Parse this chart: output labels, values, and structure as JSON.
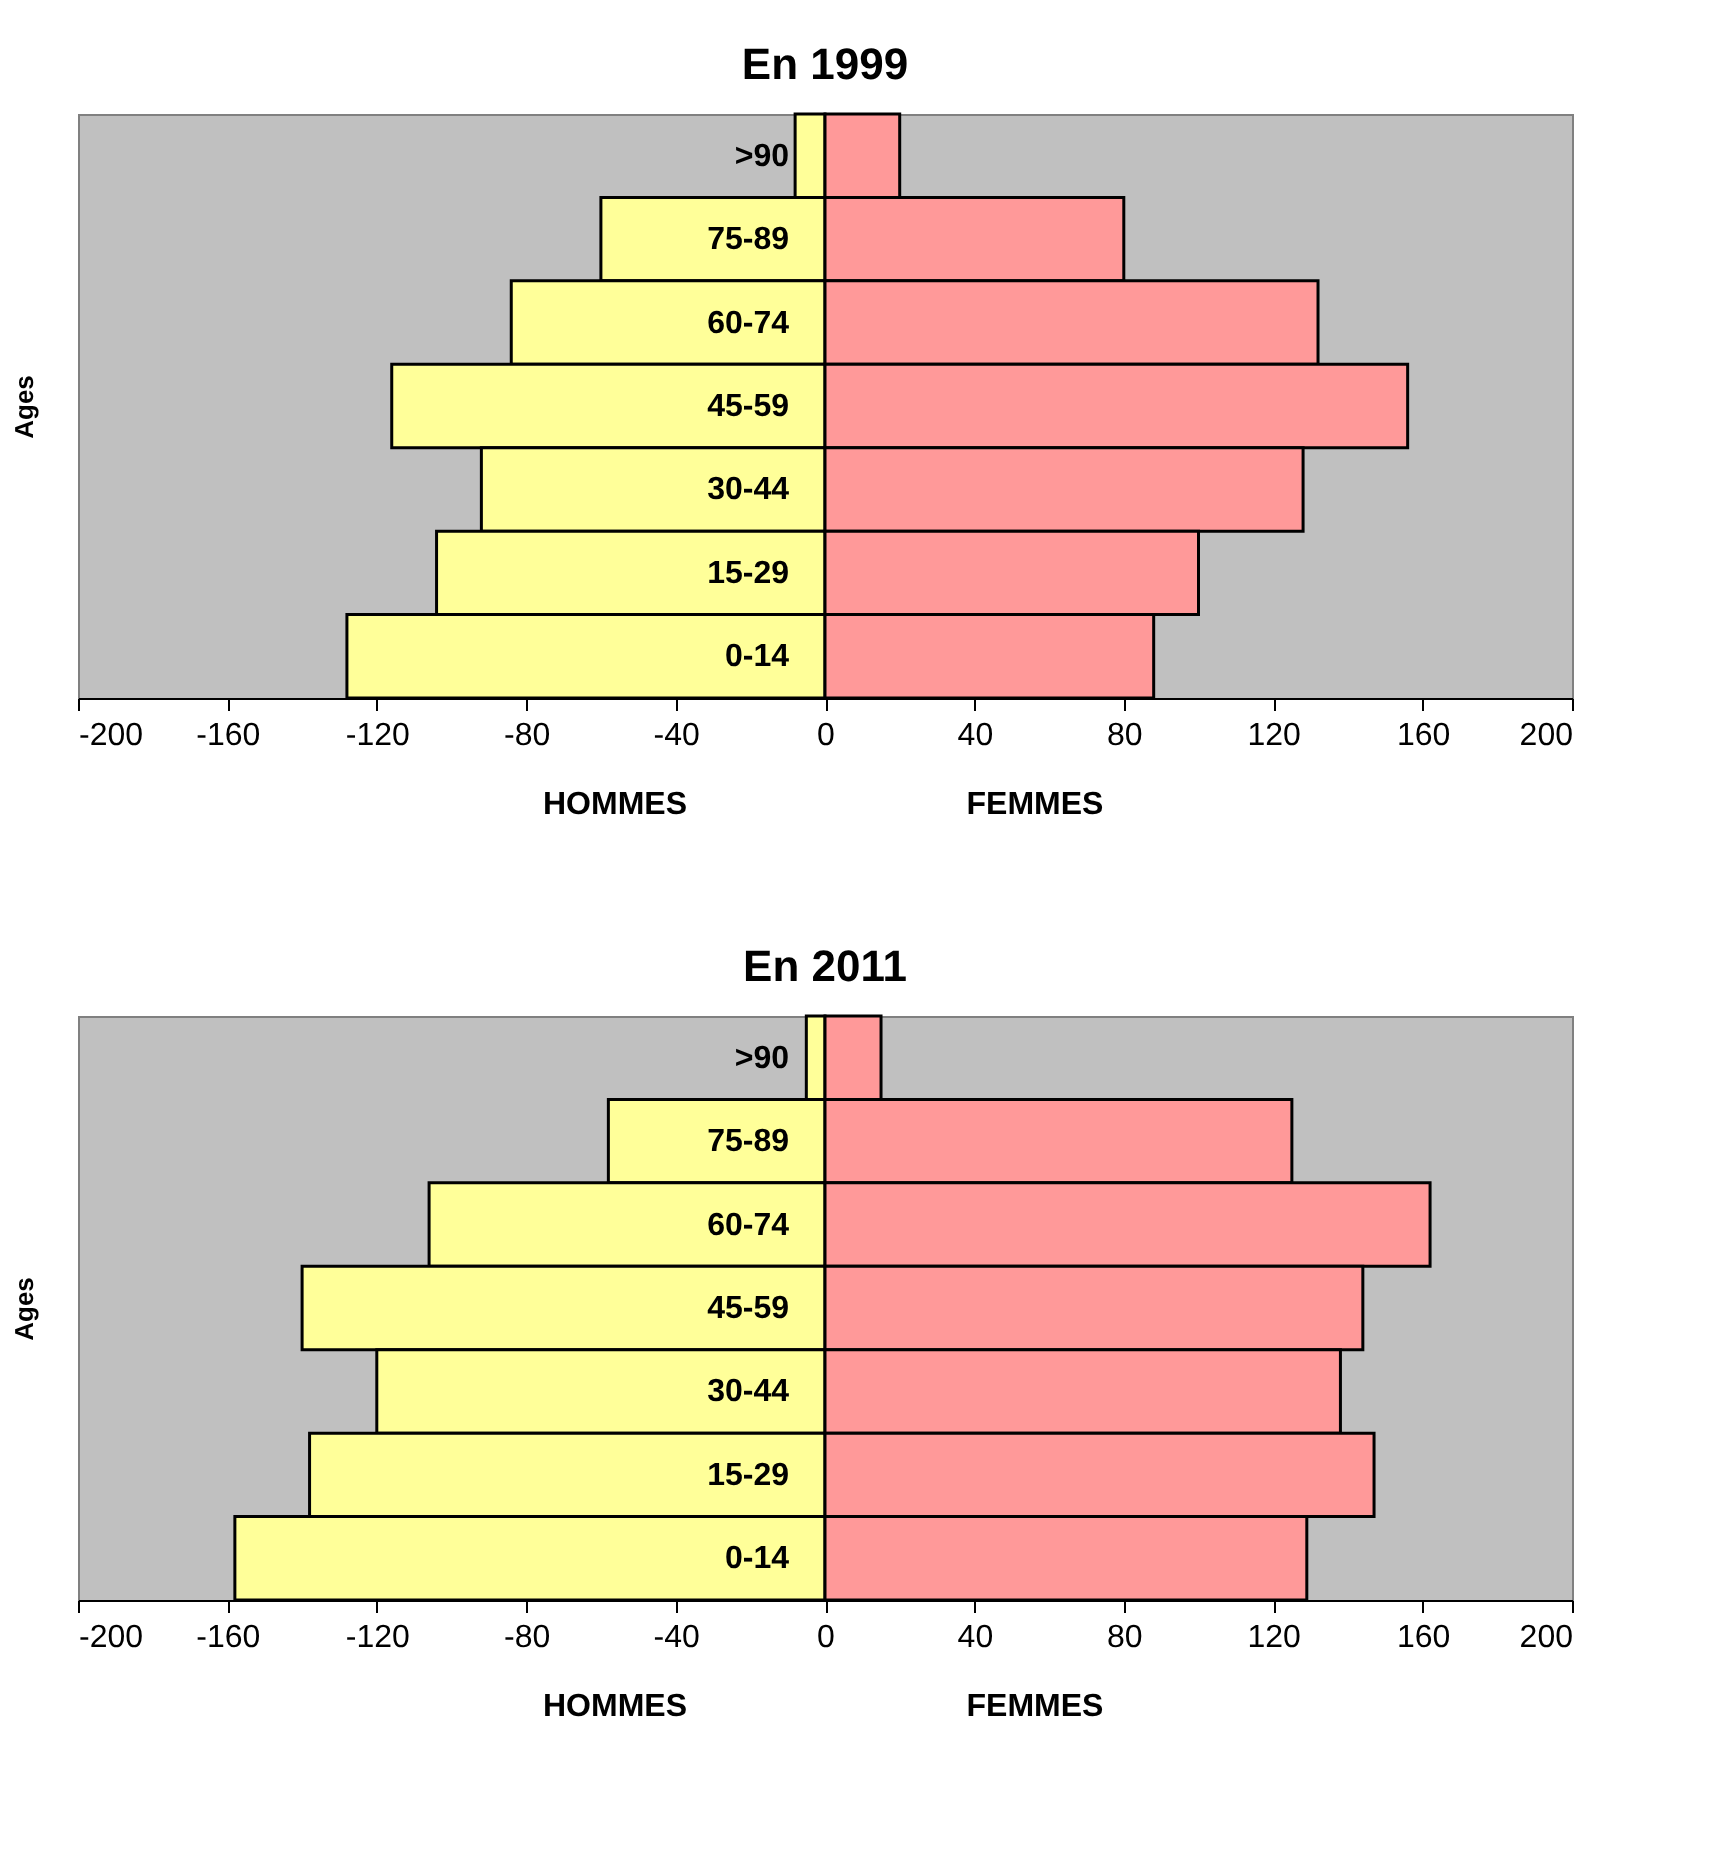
{
  "chart_data": [
    {
      "type": "bar",
      "orientation": "horizontal",
      "stacked": true,
      "title": "En 1999",
      "ylabel": "Ages",
      "categories": [
        ">90",
        "75-89",
        "60-74",
        "45-59",
        "30-44",
        "15-29",
        "0-14"
      ],
      "series": [
        {
          "name": "HOMMES",
          "color": "#ffff99",
          "values": [
            -8,
            -60,
            -84,
            -116,
            -92,
            -104,
            -128
          ]
        },
        {
          "name": "FEMMES",
          "color": "#ff9999",
          "values": [
            20,
            80,
            132,
            156,
            128,
            100,
            88
          ]
        }
      ],
      "xlim": [
        -200,
        200
      ],
      "xticks": [
        -200,
        -160,
        -120,
        -80,
        -40,
        0,
        40,
        80,
        120,
        160,
        200
      ],
      "grid": false
    },
    {
      "type": "bar",
      "orientation": "horizontal",
      "stacked": true,
      "title": "En 2011",
      "ylabel": "Ages",
      "categories": [
        ">90",
        "75-89",
        "60-74",
        "45-59",
        "30-44",
        "15-29",
        "0-14"
      ],
      "series": [
        {
          "name": "HOMMES",
          "color": "#ffff99",
          "values": [
            -5,
            -58,
            -106,
            -140,
            -120,
            -138,
            -158
          ]
        },
        {
          "name": "FEMMES",
          "color": "#ff9999",
          "values": [
            15,
            125,
            162,
            144,
            138,
            147,
            129
          ]
        }
      ],
      "xlim": [
        -200,
        200
      ],
      "xticks": [
        -200,
        -160,
        -120,
        -80,
        -40,
        0,
        40,
        80,
        120,
        160,
        200
      ],
      "grid": false
    }
  ]
}
